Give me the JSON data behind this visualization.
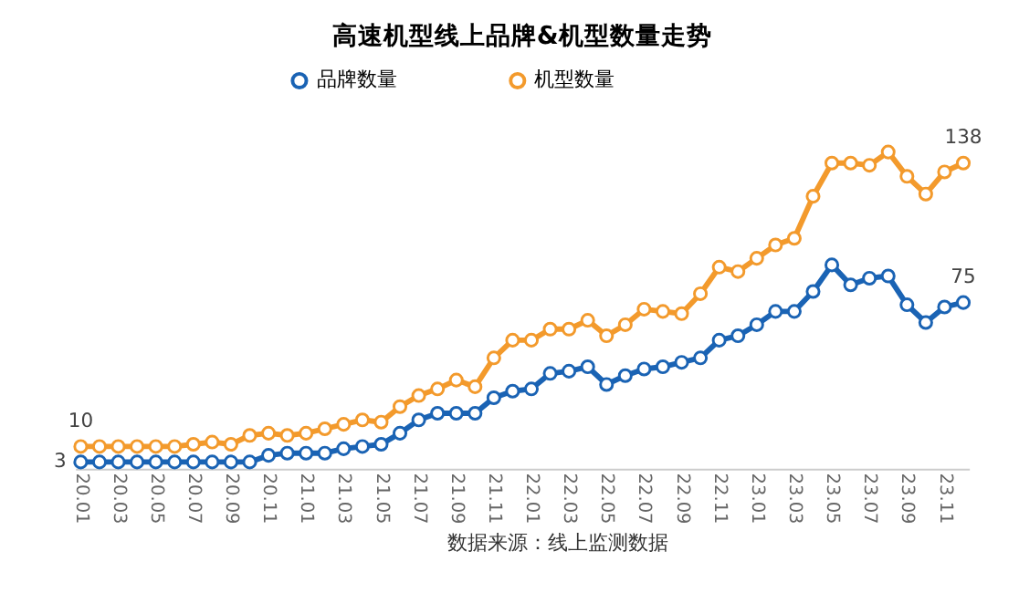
{
  "chart_data": {
    "type": "line",
    "title": "高速机型线上品牌&机型数量走势",
    "categories": [
      "20.01",
      null,
      "20.03",
      null,
      "20.05",
      null,
      "20.07",
      null,
      "20.09",
      null,
      "20.11",
      null,
      "21.01",
      null,
      "21.03",
      null,
      "21.05",
      null,
      "21.07",
      null,
      "21.09",
      null,
      "21.11",
      null,
      "22.01",
      null,
      "22.03",
      null,
      "22.05",
      null,
      "22.07",
      null,
      "22.09",
      null,
      "22.11",
      null,
      "23.01",
      null,
      "23.03",
      null,
      "23.05",
      null,
      "23.07",
      null,
      "23.09",
      null,
      "23.11",
      null
    ],
    "series": [
      {
        "name": "品牌数量",
        "color": "#1a63b4",
        "values": [
          3,
          3,
          3,
          3,
          3,
          3,
          3,
          3,
          3,
          3,
          6,
          7,
          7,
          7,
          9,
          10,
          11,
          16,
          22,
          25,
          25,
          25,
          32,
          35,
          36,
          43,
          44,
          46,
          38,
          42,
          45,
          46,
          48,
          50,
          58,
          60,
          65,
          71,
          71,
          80,
          92,
          83,
          86,
          87,
          74,
          66,
          73,
          75
        ],
        "value_labels": [
          "3",
          null,
          null,
          null,
          null,
          null,
          null,
          null,
          null,
          null,
          null,
          null,
          null,
          null,
          null,
          null,
          null,
          null,
          null,
          null,
          null,
          null,
          null,
          null,
          null,
          null,
          null,
          null,
          null,
          null,
          null,
          null,
          null,
          null,
          null,
          null,
          null,
          null,
          null,
          null,
          null,
          null,
          null,
          null,
          null,
          null,
          null,
          "75"
        ]
      },
      {
        "name": "机型数量",
        "color": "#f39a2c",
        "values": [
          10,
          10,
          10,
          10,
          10,
          10,
          11,
          12,
          11,
          15,
          16,
          15,
          16,
          18,
          20,
          22,
          21,
          28,
          33,
          36,
          40,
          37,
          50,
          58,
          58,
          63,
          63,
          67,
          60,
          65,
          72,
          71,
          70,
          79,
          91,
          89,
          95,
          101,
          104,
          123,
          138,
          138,
          137,
          143,
          132,
          124,
          134,
          138
        ],
        "value_labels": [
          "10",
          null,
          null,
          null,
          null,
          null,
          null,
          null,
          null,
          null,
          null,
          null,
          null,
          null,
          null,
          null,
          null,
          null,
          null,
          null,
          null,
          null,
          null,
          null,
          null,
          null,
          null,
          null,
          null,
          null,
          null,
          null,
          null,
          null,
          null,
          null,
          null,
          null,
          null,
          null,
          null,
          null,
          null,
          null,
          null,
          null,
          null,
          "138"
        ]
      }
    ],
    "legend": "top",
    "marker": "circle",
    "grid": false,
    "annotations": [
      "数据来源：线上监测数据"
    ]
  }
}
